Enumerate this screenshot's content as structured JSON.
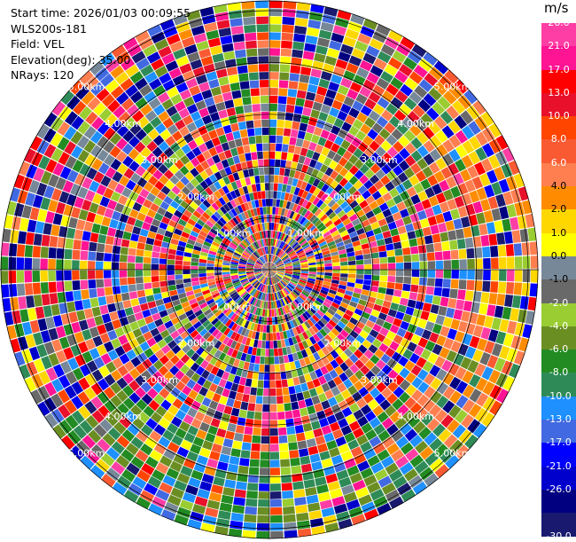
{
  "info": {
    "start_time": "Start time: 2026/01/03 00:09:55",
    "instrument": "WLS200s-181",
    "field": "Field: VEL",
    "elevation": "Elevation(deg): 35.00",
    "nrays": "NRays: 120"
  },
  "colorbar": {
    "unit": "m/s",
    "levels": [
      {
        "label": "26.0",
        "color": "#ff3ea5"
      },
      {
        "label": "21.0",
        "color": "#ff1493"
      },
      {
        "label": "17.0",
        "color": "#ff0000"
      },
      {
        "label": "13.0",
        "color": "#e8102a"
      },
      {
        "label": "10.0",
        "color": "#ff4500"
      },
      {
        "label": "8.0",
        "color": "#fa5a32"
      },
      {
        "label": "6.0",
        "color": "#ff7f50"
      },
      {
        "label": "4.0",
        "color": "#ff8c00"
      },
      {
        "label": "2.0",
        "color": "#ffd700"
      },
      {
        "label": "1.0",
        "color": "#ffff00"
      },
      {
        "label": "0.0",
        "color": "#778899"
      },
      {
        "label": "-1.0",
        "color": "#696969"
      },
      {
        "label": "-2.0",
        "color": "#9acd32"
      },
      {
        "label": "-4.0",
        "color": "#6b8e23"
      },
      {
        "label": "-6.0",
        "color": "#228b22"
      },
      {
        "label": "-8.0",
        "color": "#2e8b57"
      },
      {
        "label": "-10.0",
        "color": "#1e90ff"
      },
      {
        "label": "-13.0",
        "color": "#4169e1"
      },
      {
        "label": "-17.0",
        "color": "#0000ff"
      },
      {
        "label": "-21.0",
        "color": "#0000cd"
      },
      {
        "label": "-26.0",
        "color": "#000080"
      },
      {
        "label": "-30.0",
        "color": "#191970"
      }
    ]
  },
  "range_labels": [
    "1.00km",
    "2.00km",
    "3.00km",
    "4.00km",
    "5.00km"
  ],
  "chart_data": {
    "type": "heatmap",
    "projection": "polar-ppi",
    "field": "VEL",
    "units": "m/s",
    "n_rays": 120,
    "elevation_deg": 35.0,
    "range_rings_km": [
      1,
      2,
      3,
      4,
      5
    ],
    "vmin": -30.0,
    "vmax": 26.0,
    "colorbar_ticks": [
      26.0,
      21.0,
      17.0,
      13.0,
      10.0,
      8.0,
      6.0,
      4.0,
      2.0,
      1.0,
      0.0,
      -1.0,
      -2.0,
      -4.0,
      -6.0,
      -8.0,
      -10.0,
      -13.0,
      -17.0,
      -21.0,
      -26.0,
      -30.0
    ]
  }
}
